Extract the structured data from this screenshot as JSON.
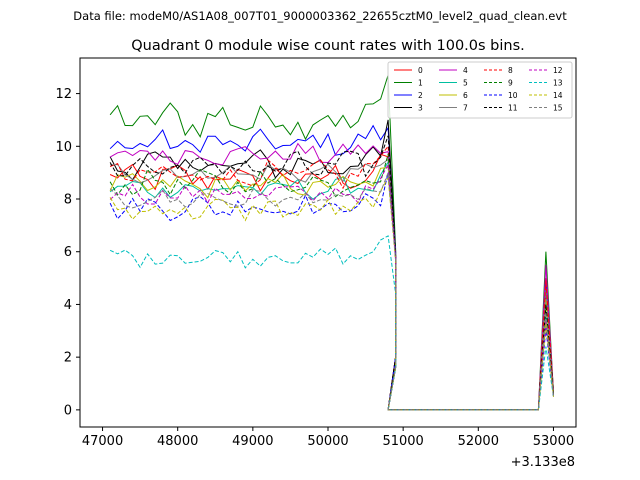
{
  "header": {
    "data_file": "Data file: modeM0/AS1A08_007T01_9000003362_22655cztM0_level2_quad_clean.evt",
    "title": "Quadrant 0 module wise count rates with 100.0s bins."
  },
  "chart_data": {
    "type": "line",
    "title": "Quadrant 0 module wise count rates with 100.0s bins.",
    "xlabel": "",
    "ylabel": "",
    "x_offset_label": "+3.133e8",
    "xlim": [
      46700,
      53300
    ],
    "ylim": [
      -0.65,
      13.35
    ],
    "x_ticks": [
      47000,
      48000,
      49000,
      50000,
      51000,
      52000,
      53000
    ],
    "x_tick_labels": [
      "47000",
      "48000",
      "49000",
      "50000",
      "51000",
      "52000",
      "53000"
    ],
    "y_ticks": [
      0,
      2,
      4,
      6,
      8,
      10,
      12
    ],
    "y_tick_labels": [
      "0",
      "2",
      "4",
      "6",
      "8",
      "10",
      "12"
    ],
    "grid": false,
    "legend_position": "top-right",
    "legend_columns": 4,
    "x_start": 47100,
    "x_step": 100,
    "n_active_points": 37,
    "drop_points": [
      {
        "x": 50800,
        "y": 0
      },
      {
        "x": 52800,
        "y": 0
      }
    ],
    "series": [
      {
        "name": "0",
        "color": "#ff0000",
        "dash": "solid",
        "mean": 8.8,
        "amp": 0.42,
        "end": [
          9.6,
          0.5
        ],
        "last": [
          6.4,
          5.0,
          0.7
        ]
      },
      {
        "name": "1",
        "color": "#008000",
        "dash": "solid",
        "mean": 11.0,
        "amp": 0.55,
        "end": [
          12.7,
          0.4
        ],
        "last": [
          6.8,
          6.0,
          0.6
        ]
      },
      {
        "name": "2",
        "color": "#0000ff",
        "dash": "solid",
        "mean": 10.1,
        "amp": 0.38,
        "end": [
          10.7,
          0.4
        ],
        "last": [
          6.7,
          4.8,
          0.6
        ]
      },
      {
        "name": "3",
        "color": "#000000",
        "dash": "solid",
        "mean": 9.3,
        "amp": 0.45,
        "end": [
          11.0,
          0.5
        ],
        "last": [
          6.6,
          4.4,
          0.6
        ]
      },
      {
        "name": "4",
        "color": "#c000c0",
        "dash": "solid",
        "mean": 9.7,
        "amp": 0.32,
        "end": [
          9.8,
          0.5
        ],
        "last": [
          6.6,
          5.5,
          0.6
        ]
      },
      {
        "name": "5",
        "color": "#00bfa0",
        "dash": "solid",
        "mean": 8.4,
        "amp": 0.3,
        "end": [
          9.4,
          0.4
        ],
        "last": [
          6.3,
          3.6,
          0.5
        ]
      },
      {
        "name": "6",
        "color": "#bfbf00",
        "dash": "solid",
        "mean": 8.5,
        "amp": 0.35,
        "end": [
          9.2,
          0.5
        ],
        "last": [
          6.5,
          4.2,
          0.6
        ]
      },
      {
        "name": "7",
        "color": "#7f7f7f",
        "dash": "solid",
        "mean": 9.0,
        "amp": 0.3,
        "end": [
          9.5,
          0.5
        ],
        "last": [
          6.4,
          4.6,
          0.6
        ]
      },
      {
        "name": "8",
        "color": "#ff0000",
        "dash": "dashed",
        "mean": 8.9,
        "amp": 0.4,
        "end": [
          10.0,
          0.5
        ],
        "last": [
          6.4,
          4.9,
          0.6
        ]
      },
      {
        "name": "9",
        "color": "#008000",
        "dash": "dashed",
        "mean": 8.6,
        "amp": 0.38,
        "end": [
          9.7,
          0.4
        ],
        "last": [
          6.7,
          3.9,
          0.6
        ]
      },
      {
        "name": "10",
        "color": "#0000ff",
        "dash": "dashed",
        "mean": 7.7,
        "amp": 0.35,
        "end": [
          9.0,
          0.5
        ],
        "last": [
          6.5,
          3.1,
          0.5
        ]
      },
      {
        "name": "11",
        "color": "#000000",
        "dash": "dashed",
        "mean": 9.2,
        "amp": 0.45,
        "end": [
          10.4,
          0.5
        ],
        "last": [
          6.5,
          4.0,
          0.6
        ]
      },
      {
        "name": "12",
        "color": "#c000c0",
        "dash": "dashed",
        "mean": 8.2,
        "amp": 0.32,
        "end": [
          9.3,
          0.4
        ],
        "last": [
          6.4,
          3.4,
          0.5
        ]
      },
      {
        "name": "13",
        "color": "#00bfbf",
        "dash": "dashed",
        "mean": 5.8,
        "amp": 0.3,
        "end": [
          6.6,
          0.4
        ],
        "last": [
          4.9,
          2.4,
          0.5
        ]
      },
      {
        "name": "14",
        "color": "#bfbf00",
        "dash": "dashed",
        "mean": 7.6,
        "amp": 0.35,
        "end": [
          8.8,
          0.4
        ],
        "last": [
          6.3,
          3.3,
          0.5
        ]
      },
      {
        "name": "15",
        "color": "#7f7f7f",
        "dash": "dashed",
        "mean": 8.0,
        "amp": 0.3,
        "end": [
          9.0,
          0.4
        ],
        "last": [
          6.3,
          3.7,
          0.5
        ]
      }
    ]
  }
}
